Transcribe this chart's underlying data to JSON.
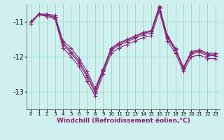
{
  "background_color": "#cff0ee",
  "grid_color": "#99ddcc",
  "line_color": "#882277",
  "marker": "+",
  "markersize": 4,
  "linewidth": 0.8,
  "xlabel": "Windchill (Refroidissement éolien,°C)",
  "xlabel_fontsize": 6.5,
  "yticks": [
    -13,
    -12,
    -11
  ],
  "xticks": [
    0,
    1,
    2,
    3,
    4,
    5,
    6,
    7,
    8,
    9,
    10,
    11,
    12,
    13,
    14,
    15,
    16,
    17,
    18,
    19,
    20,
    21,
    22,
    23
  ],
  "xlim": [
    -0.5,
    23.5
  ],
  "ylim": [
    -13.5,
    -10.5
  ],
  "curves": [
    [
      -11.0,
      -10.78,
      -10.78,
      -10.82,
      -11.55,
      -11.75,
      -12.05,
      -12.42,
      -12.9,
      -12.35,
      -11.75,
      -11.6,
      -11.5,
      -11.4,
      -11.3,
      -11.25,
      -10.55,
      -11.4,
      -11.75,
      -12.3,
      -11.85,
      -11.8,
      -11.9,
      -11.9
    ],
    [
      -11.0,
      -10.78,
      -10.82,
      -10.85,
      -11.6,
      -11.85,
      -12.12,
      -12.52,
      -12.97,
      -12.38,
      -11.78,
      -11.63,
      -11.53,
      -11.43,
      -11.33,
      -11.28,
      -10.58,
      -11.43,
      -11.78,
      -12.32,
      -11.88,
      -11.83,
      -11.93,
      -11.93
    ],
    [
      -11.0,
      -10.78,
      -10.82,
      -10.88,
      -11.65,
      -11.9,
      -12.18,
      -12.58,
      -13.03,
      -12.42,
      -11.82,
      -11.67,
      -11.57,
      -11.47,
      -11.37,
      -11.32,
      -10.62,
      -11.47,
      -11.82,
      -12.35,
      -11.92,
      -11.87,
      -11.97,
      -11.97
    ],
    [
      -11.05,
      -10.8,
      -10.85,
      -10.92,
      -11.75,
      -12.0,
      -12.28,
      -12.7,
      -13.12,
      -12.5,
      -11.9,
      -11.75,
      -11.65,
      -11.55,
      -11.45,
      -11.4,
      -10.7,
      -11.55,
      -11.9,
      -12.42,
      -12.0,
      -11.95,
      -12.05,
      -12.05
    ]
  ]
}
